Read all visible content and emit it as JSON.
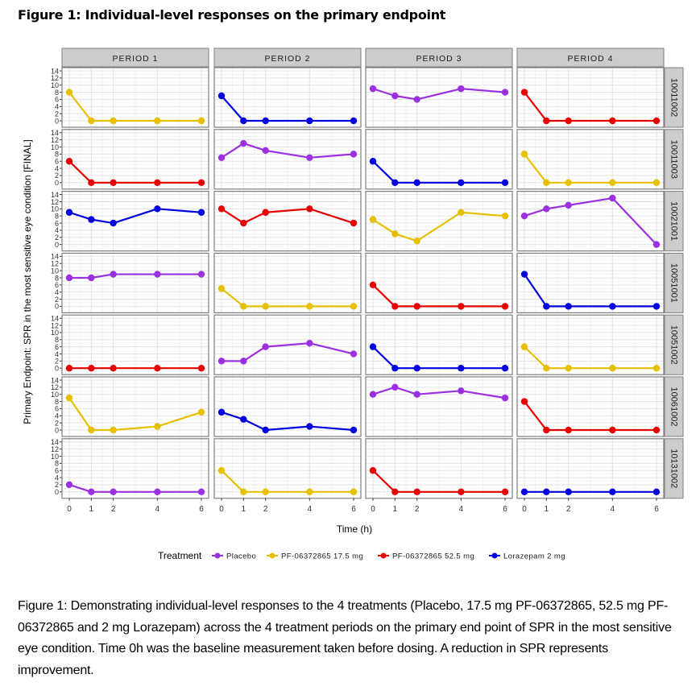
{
  "figure_title": "Figure 1: Individual-level  responses on the primary endpoint",
  "caption": "Figure 1: Demonstrating individual-level responses to the 4 treatments (Placebo, 17.5 mg PF-06372865,  52.5 mg PF-06372865  and 2 mg Lorazepam) across the 4 treatment periods on the primary end point of SPR in the most sensitive eye condition. Time 0h was the baseline measurement taken before dosing.  A reduction in SPR represents improvement.",
  "chart_data": {
    "type": "line",
    "xlabel": "Time (h)",
    "ylabel": "Primary Endpoint: SPR in the most sensitive eye condition [FINAL]",
    "x": [
      0,
      1,
      2,
      4,
      6
    ],
    "x_ticks": [
      "0",
      "1",
      "2",
      "4",
      "6"
    ],
    "ylim": [
      0,
      14
    ],
    "y_ticks": [
      "0",
      "2",
      "4",
      "6",
      "8",
      "10",
      "12",
      "14"
    ],
    "grid": true,
    "columns": [
      "PERIOD 1",
      "PERIOD 2",
      "PERIOD 3",
      "PERIOD 4"
    ],
    "rows": [
      "10011002",
      "10011003",
      "10021001",
      "10051001",
      "10051002",
      "10061002",
      "10131002"
    ],
    "legend": {
      "title": "Treatment",
      "position": "bottom",
      "entries": [
        {
          "key": "placebo",
          "label": "Placebo",
          "color": "#9b30e0"
        },
        {
          "key": "pf17",
          "label": "PF-06372865 17.5 mg",
          "color": "#e6c000"
        },
        {
          "key": "pf52",
          "label": "PF-06372865 52.5 mg",
          "color": "#e80000"
        },
        {
          "key": "loraz",
          "label": "Lorazepam 2 mg",
          "color": "#0000e0"
        }
      ]
    },
    "panels": [
      [
        {
          "treatment": "pf17",
          "values": [
            8,
            0,
            0,
            0,
            0
          ]
        },
        {
          "treatment": "loraz",
          "values": [
            7,
            0,
            0,
            0,
            0
          ]
        },
        {
          "treatment": "placebo",
          "values": [
            9,
            7,
            6,
            9,
            8
          ]
        },
        {
          "treatment": "pf52",
          "values": [
            8,
            0,
            0,
            0,
            0
          ]
        }
      ],
      [
        {
          "treatment": "pf52",
          "values": [
            6,
            0,
            0,
            0,
            0
          ]
        },
        {
          "treatment": "placebo",
          "values": [
            7,
            11,
            9,
            7,
            8
          ]
        },
        {
          "treatment": "loraz",
          "values": [
            6,
            0,
            0,
            0,
            0
          ]
        },
        {
          "treatment": "pf17",
          "values": [
            8,
            0,
            0,
            0,
            0
          ]
        }
      ],
      [
        {
          "treatment": "loraz",
          "values": [
            9,
            7,
            6,
            10,
            9
          ]
        },
        {
          "treatment": "pf52",
          "values": [
            10,
            6,
            9,
            10,
            6
          ]
        },
        {
          "treatment": "pf17",
          "values": [
            7,
            3,
            1,
            9,
            8
          ]
        },
        {
          "treatment": "placebo",
          "values": [
            8,
            10,
            11,
            13,
            0
          ]
        }
      ],
      [
        {
          "treatment": "placebo",
          "values": [
            8,
            8,
            9,
            9,
            9
          ]
        },
        {
          "treatment": "pf17",
          "values": [
            5,
            0,
            0,
            0,
            0
          ]
        },
        {
          "treatment": "pf52",
          "values": [
            6,
            0,
            0,
            0,
            0
          ]
        },
        {
          "treatment": "loraz",
          "values": [
            9,
            0,
            0,
            0,
            0
          ]
        }
      ],
      [
        {
          "treatment": "pf52",
          "values": [
            0,
            0,
            0,
            0,
            0
          ]
        },
        {
          "treatment": "placebo",
          "values": [
            2,
            2,
            6,
            7,
            4
          ]
        },
        {
          "treatment": "loraz",
          "values": [
            6,
            0,
            0,
            0,
            0
          ]
        },
        {
          "treatment": "pf17",
          "values": [
            6,
            0,
            0,
            0,
            0
          ]
        }
      ],
      [
        {
          "treatment": "pf17",
          "values": [
            9,
            0,
            0,
            1,
            5
          ]
        },
        {
          "treatment": "loraz",
          "values": [
            5,
            3,
            0,
            1,
            0
          ]
        },
        {
          "treatment": "placebo",
          "values": [
            10,
            12,
            10,
            11,
            9
          ]
        },
        {
          "treatment": "pf52",
          "values": [
            8,
            0,
            0,
            0,
            0
          ]
        }
      ],
      [
        {
          "treatment": "placebo",
          "values": [
            2,
            0,
            0,
            0,
            0
          ]
        },
        {
          "treatment": "pf17",
          "values": [
            6,
            0,
            0,
            0,
            0
          ]
        },
        {
          "treatment": "pf52",
          "values": [
            6,
            0,
            0,
            0,
            0
          ]
        },
        {
          "treatment": "loraz",
          "values": [
            0,
            0,
            0,
            0,
            0
          ]
        }
      ]
    ]
  }
}
